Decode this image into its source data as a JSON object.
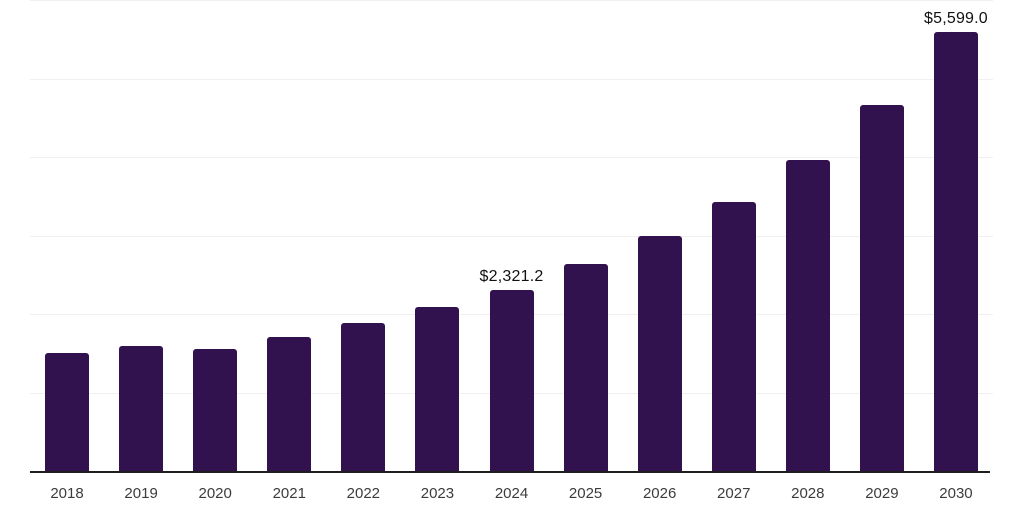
{
  "chart_data": {
    "type": "bar",
    "title": "",
    "xlabel": "",
    "ylabel": "",
    "categories": [
      "2018",
      "2019",
      "2020",
      "2021",
      "2022",
      "2023",
      "2024",
      "2025",
      "2026",
      "2027",
      "2028",
      "2029",
      "2030"
    ],
    "values": [
      1520,
      1610,
      1570,
      1720,
      1895,
      2100,
      2321.2,
      2650,
      3010,
      3440,
      3980,
      4670,
      5599
    ],
    "value_labels": [
      "",
      "",
      "",
      "",
      "",
      "",
      "$2,321.2",
      "",
      "",
      "",
      "",
      "",
      "$5,599.0"
    ],
    "ylim": [
      0,
      6000
    ],
    "gridline_step": 1000,
    "grid": true,
    "legend": "none",
    "colors": {
      "bar": "#32124E",
      "grid": "#F0F0F0",
      "axis_line": "#1E1E1E",
      "tick_text": "#3C3C3C",
      "value_label_text": "#111111",
      "background": "#FFFFFF"
    }
  }
}
